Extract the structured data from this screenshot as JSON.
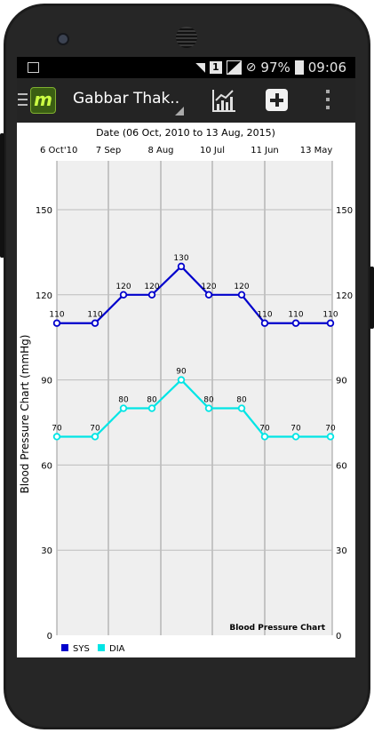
{
  "status_bar": {
    "sim": "1",
    "battery": "97%",
    "time": "09:06"
  },
  "app_bar": {
    "logo_letter": "m",
    "title": "Gabbar Thak.."
  },
  "icons": {
    "menu": "menu-icon",
    "logo": "app-logo-icon",
    "chart": "chart-icon",
    "add": "add-icon",
    "more": "more-vert-icon",
    "wifi": "wifi-icon",
    "signal": "signal-icon",
    "battery": "battery-icon",
    "image": "image-notification-icon",
    "blocked": "do-not-disturb-icon"
  },
  "chart_data": {
    "type": "line",
    "title": "Date (06 Oct, 2010 to 13 Aug, 2015)",
    "corner_title": "Blood Pressure Chart",
    "ylabel": "Blood Pressure Chart (mmHg)",
    "ylim": [
      0,
      150
    ],
    "y_ticks": [
      0,
      30,
      60,
      90,
      120,
      150
    ],
    "x_tick_labels": [
      "6 Oct'10",
      "7 Sep",
      "8 Aug",
      "10 Jul",
      "11 Jun",
      "13 May"
    ],
    "grid": true,
    "legend_placement": "bottom-left",
    "series": [
      {
        "name": "SYS",
        "color": "#0000cc",
        "values": [
          110,
          110,
          120,
          120,
          130,
          120,
          120,
          110,
          110,
          110
        ]
      },
      {
        "name": "DIA",
        "color": "#00e5e5",
        "values": [
          70,
          70,
          80,
          80,
          90,
          80,
          80,
          70,
          70,
          70
        ]
      }
    ]
  }
}
